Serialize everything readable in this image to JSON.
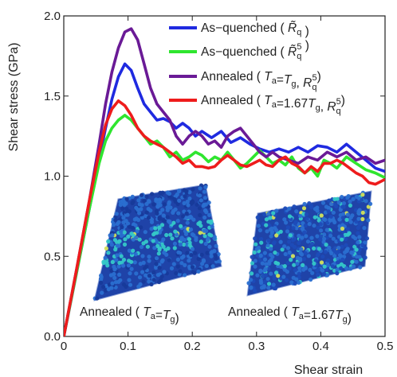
{
  "chart_data": {
    "type": "line",
    "xlabel": "Shear strain",
    "ylabel": "Shear stress (GPa)",
    "xlim": [
      0,
      0.5
    ],
    "ylim": [
      0,
      2.0
    ],
    "x_ticks": [
      "0",
      "0.1",
      "0.2",
      "0.3",
      "0.4",
      "0.5"
    ],
    "y_ticks": [
      "0.0",
      "0.5",
      "1.0",
      "1.5",
      "2.0"
    ],
    "legend_position": "top-right",
    "series": [
      {
        "name": "As-quenched",
        "legend_tokens": [
          {
            "t": "As−quenched ( "
          },
          {
            "t": "R",
            "style": "italic-tilde"
          },
          {
            "t": "q",
            "style": "sub"
          },
          {
            "t": " )"
          }
        ],
        "color": "#1f2ae0",
        "points": [
          [
            0,
            0
          ],
          [
            0.02,
            0.4
          ],
          [
            0.04,
            0.8
          ],
          [
            0.055,
            1.1
          ],
          [
            0.065,
            1.3
          ],
          [
            0.075,
            1.48
          ],
          [
            0.085,
            1.62
          ],
          [
            0.095,
            1.7
          ],
          [
            0.105,
            1.66
          ],
          [
            0.115,
            1.55
          ],
          [
            0.125,
            1.45
          ],
          [
            0.135,
            1.4
          ],
          [
            0.145,
            1.35
          ],
          [
            0.155,
            1.36
          ],
          [
            0.165,
            1.34
          ],
          [
            0.175,
            1.3
          ],
          [
            0.185,
            1.33
          ],
          [
            0.195,
            1.3
          ],
          [
            0.205,
            1.25
          ],
          [
            0.215,
            1.28
          ],
          [
            0.23,
            1.24
          ],
          [
            0.245,
            1.28
          ],
          [
            0.26,
            1.21
          ],
          [
            0.275,
            1.24
          ],
          [
            0.29,
            1.2
          ],
          [
            0.305,
            1.17
          ],
          [
            0.32,
            1.15
          ],
          [
            0.335,
            1.17
          ],
          [
            0.35,
            1.15
          ],
          [
            0.365,
            1.18
          ],
          [
            0.38,
            1.15
          ],
          [
            0.395,
            1.19
          ],
          [
            0.41,
            1.18
          ],
          [
            0.425,
            1.15
          ],
          [
            0.44,
            1.2
          ],
          [
            0.455,
            1.15
          ],
          [
            0.47,
            1.1
          ],
          [
            0.485,
            1.05
          ],
          [
            0.5,
            1.03
          ]
        ]
      },
      {
        "name": "As-quenched",
        "legend_tokens": [
          {
            "t": "As−quenched ( "
          },
          {
            "t": "R",
            "style": "italic-tilde"
          },
          {
            "t": "q",
            "style": "subsup",
            "sup": "5"
          },
          {
            "t": " )"
          }
        ],
        "color": "#2fe52f",
        "points": [
          [
            0,
            0
          ],
          [
            0.02,
            0.4
          ],
          [
            0.04,
            0.8
          ],
          [
            0.055,
            1.08
          ],
          [
            0.065,
            1.22
          ],
          [
            0.075,
            1.3
          ],
          [
            0.085,
            1.35
          ],
          [
            0.095,
            1.38
          ],
          [
            0.105,
            1.35
          ],
          [
            0.115,
            1.3
          ],
          [
            0.125,
            1.25
          ],
          [
            0.135,
            1.2
          ],
          [
            0.145,
            1.22
          ],
          [
            0.155,
            1.18
          ],
          [
            0.165,
            1.12
          ],
          [
            0.175,
            1.15
          ],
          [
            0.185,
            1.1
          ],
          [
            0.195,
            1.12
          ],
          [
            0.205,
            1.15
          ],
          [
            0.215,
            1.13
          ],
          [
            0.225,
            1.09
          ],
          [
            0.235,
            1.12
          ],
          [
            0.245,
            1.1
          ],
          [
            0.255,
            1.15
          ],
          [
            0.265,
            1.1
          ],
          [
            0.275,
            1.05
          ],
          [
            0.285,
            1.08
          ],
          [
            0.295,
            1.12
          ],
          [
            0.305,
            1.16
          ],
          [
            0.315,
            1.12
          ],
          [
            0.325,
            1.08
          ],
          [
            0.335,
            1.1
          ],
          [
            0.345,
            1.07
          ],
          [
            0.355,
            1.12
          ],
          [
            0.365,
            1.05
          ],
          [
            0.375,
            1.02
          ],
          [
            0.385,
            1.05
          ],
          [
            0.395,
            1.0
          ],
          [
            0.405,
            1.1
          ],
          [
            0.415,
            1.08
          ],
          [
            0.425,
            1.05
          ],
          [
            0.44,
            1.12
          ],
          [
            0.455,
            1.08
          ],
          [
            0.47,
            1.04
          ],
          [
            0.485,
            1.02
          ],
          [
            0.5,
            0.99
          ]
        ]
      },
      {
        "name": "Annealed",
        "legend_tokens": [
          {
            "t": "Annealed ( "
          },
          {
            "t": "T",
            "style": "italic"
          },
          {
            "t": "a",
            "style": "sub"
          },
          {
            "t": "="
          },
          {
            "t": "T",
            "style": "italic"
          },
          {
            "t": "g",
            "style": "sub"
          },
          {
            "t": ", "
          },
          {
            "t": "R",
            "style": "italic"
          },
          {
            "t": "q",
            "style": "subsup",
            "sup": "5"
          },
          {
            "t": ")"
          }
        ],
        "color": "#6a1a96",
        "points": [
          [
            0,
            0
          ],
          [
            0.02,
            0.42
          ],
          [
            0.04,
            0.85
          ],
          [
            0.055,
            1.2
          ],
          [
            0.065,
            1.45
          ],
          [
            0.075,
            1.65
          ],
          [
            0.085,
            1.8
          ],
          [
            0.095,
            1.9
          ],
          [
            0.105,
            1.92
          ],
          [
            0.115,
            1.85
          ],
          [
            0.125,
            1.7
          ],
          [
            0.135,
            1.55
          ],
          [
            0.145,
            1.45
          ],
          [
            0.155,
            1.4
          ],
          [
            0.165,
            1.35
          ],
          [
            0.175,
            1.25
          ],
          [
            0.185,
            1.2
          ],
          [
            0.195,
            1.25
          ],
          [
            0.205,
            1.28
          ],
          [
            0.215,
            1.25
          ],
          [
            0.225,
            1.2
          ],
          [
            0.235,
            1.22
          ],
          [
            0.245,
            1.18
          ],
          [
            0.255,
            1.25
          ],
          [
            0.265,
            1.28
          ],
          [
            0.275,
            1.3
          ],
          [
            0.285,
            1.25
          ],
          [
            0.295,
            1.2
          ],
          [
            0.305,
            1.15
          ],
          [
            0.315,
            1.12
          ],
          [
            0.325,
            1.15
          ],
          [
            0.335,
            1.12
          ],
          [
            0.35,
            1.1
          ],
          [
            0.365,
            1.08
          ],
          [
            0.38,
            1.12
          ],
          [
            0.395,
            1.1
          ],
          [
            0.41,
            1.15
          ],
          [
            0.425,
            1.12
          ],
          [
            0.44,
            1.15
          ],
          [
            0.455,
            1.1
          ],
          [
            0.47,
            1.12
          ],
          [
            0.485,
            1.08
          ],
          [
            0.5,
            1.1
          ]
        ]
      },
      {
        "name": "Annealed",
        "legend_tokens": [
          {
            "t": "Annealed ( "
          },
          {
            "t": "T",
            "style": "italic"
          },
          {
            "t": "a",
            "style": "sub"
          },
          {
            "t": "=1.67"
          },
          {
            "t": "T",
            "style": "italic"
          },
          {
            "t": "g",
            "style": "sub"
          },
          {
            "t": ", "
          },
          {
            "t": "R",
            "style": "italic"
          },
          {
            "t": "q",
            "style": "subsup",
            "sup": "5"
          },
          {
            "t": ")"
          }
        ],
        "color": "#ee1c1c",
        "points": [
          [
            0,
            0
          ],
          [
            0.02,
            0.42
          ],
          [
            0.04,
            0.85
          ],
          [
            0.055,
            1.15
          ],
          [
            0.065,
            1.32
          ],
          [
            0.075,
            1.42
          ],
          [
            0.085,
            1.47
          ],
          [
            0.095,
            1.44
          ],
          [
            0.105,
            1.38
          ],
          [
            0.115,
            1.3
          ],
          [
            0.125,
            1.25
          ],
          [
            0.135,
            1.22
          ],
          [
            0.145,
            1.2
          ],
          [
            0.155,
            1.18
          ],
          [
            0.165,
            1.15
          ],
          [
            0.175,
            1.12
          ],
          [
            0.185,
            1.08
          ],
          [
            0.195,
            1.1
          ],
          [
            0.205,
            1.06
          ],
          [
            0.215,
            1.06
          ],
          [
            0.225,
            1.05
          ],
          [
            0.235,
            1.06
          ],
          [
            0.245,
            1.1
          ],
          [
            0.255,
            1.13
          ],
          [
            0.265,
            1.1
          ],
          [
            0.275,
            1.07
          ],
          [
            0.285,
            1.06
          ],
          [
            0.295,
            1.08
          ],
          [
            0.305,
            1.1
          ],
          [
            0.315,
            1.07
          ],
          [
            0.325,
            1.06
          ],
          [
            0.335,
            1.1
          ],
          [
            0.345,
            1.12
          ],
          [
            0.355,
            1.08
          ],
          [
            0.365,
            1.06
          ],
          [
            0.375,
            1.02
          ],
          [
            0.385,
            1.06
          ],
          [
            0.395,
            1.03
          ],
          [
            0.405,
            1.08
          ],
          [
            0.415,
            1.08
          ],
          [
            0.425,
            1.1
          ],
          [
            0.435,
            1.08
          ],
          [
            0.445,
            1.05
          ],
          [
            0.455,
            1.02
          ],
          [
            0.465,
            1.0
          ],
          [
            0.475,
            0.96
          ],
          [
            0.485,
            0.95
          ],
          [
            0.5,
            0.98
          ]
        ]
      }
    ],
    "annotations": [
      {
        "text": "Annealed (",
        "tokens": [
          {
            "t": "Annealed ( "
          },
          {
            "t": "T",
            "style": "italic"
          },
          {
            "t": "a",
            "style": "sub"
          },
          {
            "t": "="
          },
          {
            "t": "T",
            "style": "italic"
          },
          {
            "t": "g",
            "style": "sub"
          },
          {
            "t": ")"
          }
        ],
        "image": "annealed-Tg-simulation-image"
      },
      {
        "text": "Annealed (",
        "tokens": [
          {
            "t": "Annealed ( "
          },
          {
            "t": "T",
            "style": "italic"
          },
          {
            "t": "a",
            "style": "sub"
          },
          {
            "t": "=1.67"
          },
          {
            "t": "T",
            "style": "italic"
          },
          {
            "t": "g",
            "style": "sub"
          },
          {
            "t": ")"
          }
        ],
        "image": "annealed-1.67Tg-simulation-image"
      }
    ]
  },
  "colors": {
    "inset_base": "#1f43a8",
    "inset_mid": "#2a6fd0",
    "inset_highlight": "#35c8c8",
    "inset_hot": "#d4e25a"
  }
}
